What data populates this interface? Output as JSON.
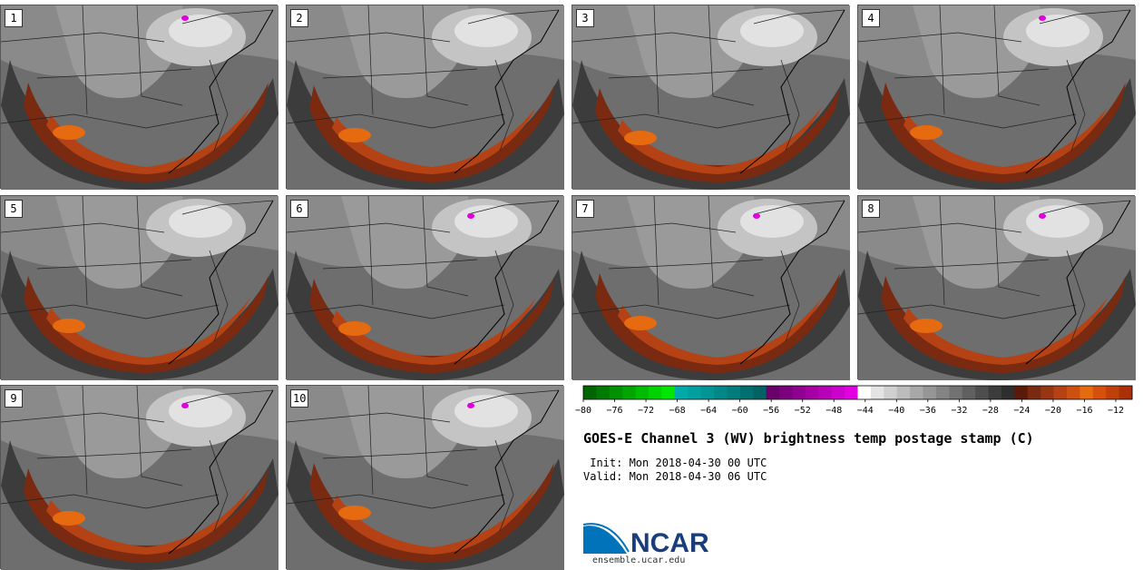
{
  "title": "GOES-E Channel 3 (WV) brightness temp postage stamp (C)",
  "init_line": " Init: Mon 2018-04-30 00 UTC",
  "valid_line": "Valid: Mon 2018-04-30 06 UTC",
  "logo_text": "NCAR",
  "logo_url": "ensemble.ucar.edu",
  "panels": [
    {
      "label": "1"
    },
    {
      "label": "2"
    },
    {
      "label": "3"
    },
    {
      "label": "4"
    },
    {
      "label": "5"
    },
    {
      "label": "6"
    },
    {
      "label": "7"
    },
    {
      "label": "8"
    },
    {
      "label": "9"
    },
    {
      "label": "10"
    }
  ],
  "colorbar": {
    "tick_labels": [
      "−80",
      "−76",
      "−72",
      "−68",
      "−64",
      "−60",
      "−56",
      "−52",
      "−48",
      "−44",
      "−40",
      "−36",
      "−32",
      "−28",
      "−24",
      "−20",
      "−16",
      "−12"
    ],
    "colors": [
      "#006400",
      "#007a00",
      "#009000",
      "#00a600",
      "#00bc00",
      "#00d200",
      "#00e600",
      "#00aaaa",
      "#00a0a0",
      "#009494",
      "#008888",
      "#007c7c",
      "#006f6f",
      "#006262",
      "#6a006a",
      "#7c007c",
      "#900090",
      "#a400a4",
      "#b800b8",
      "#cc00cc",
      "#e000e0",
      "#ffffff",
      "#e4e4e4",
      "#d0d0d0",
      "#bcbcbc",
      "#a8a8a8",
      "#969696",
      "#848484",
      "#727272",
      "#606060",
      "#4e4e4e",
      "#3c3c3c",
      "#2e2e2e",
      "#5a1a0a",
      "#7a2a10",
      "#983512",
      "#b44214",
      "#cc5010",
      "#e66a10",
      "#d4500c",
      "#c0400a",
      "#aa3008"
    ]
  }
}
